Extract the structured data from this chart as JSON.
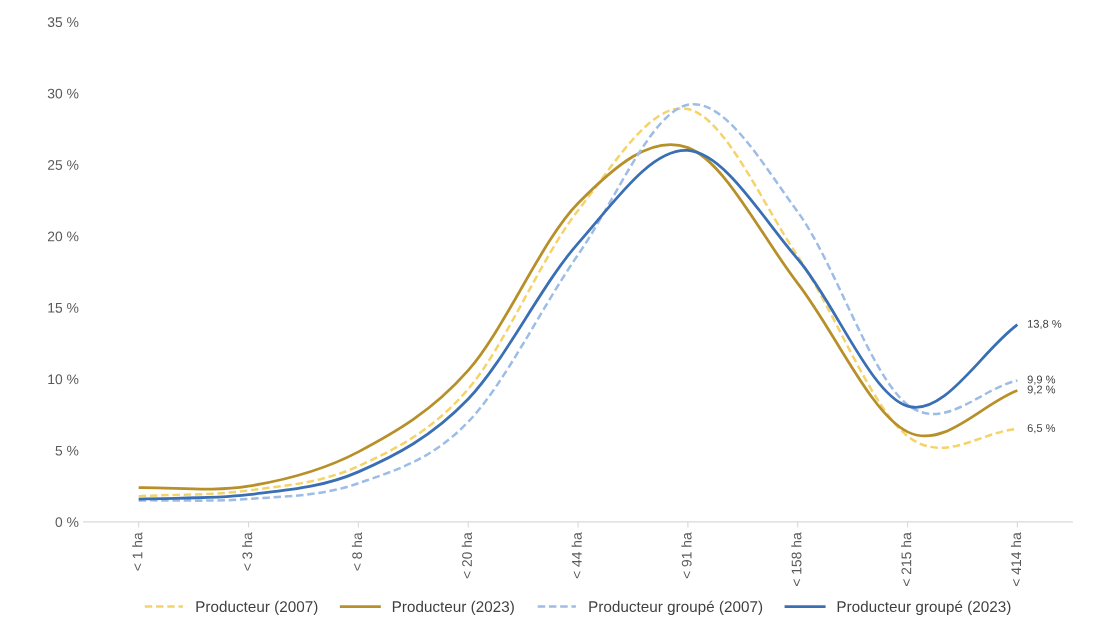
{
  "chart_data": {
    "type": "line",
    "categories": [
      "< 1 ha",
      "< 3 ha",
      "< 8 ha",
      "< 20 ha",
      "< 44 ha",
      "< 91 ha",
      "< 158 ha",
      "< 215 ha",
      "< 414 ha"
    ],
    "series": [
      {
        "name": "Producteur (2007)",
        "color": "#f5d36b",
        "line_style": "dashed",
        "values": [
          1.8,
          2.2,
          3.9,
          9.3,
          21.8,
          28.9,
          18.6,
          6.0,
          6.5
        ],
        "value_labels": [
          null,
          null,
          null,
          null,
          null,
          null,
          null,
          null,
          "6,5 %"
        ]
      },
      {
        "name": "Producteur (2023)",
        "color": "#b8902a",
        "line_style": "solid",
        "values": [
          2.4,
          2.5,
          4.9,
          10.6,
          22.3,
          26.2,
          16.7,
          6.3,
          9.2
        ],
        "value_labels": [
          null,
          null,
          null,
          null,
          null,
          null,
          null,
          null,
          "9,2 %"
        ]
      },
      {
        "name": "Producteur groupé (2007)",
        "color": "#9dbde6",
        "line_style": "dashed",
        "values": [
          1.5,
          1.6,
          2.7,
          7.0,
          18.7,
          29.2,
          21.7,
          8.2,
          9.9
        ],
        "value_labels": [
          null,
          null,
          null,
          null,
          null,
          null,
          null,
          null,
          "9,9 %"
        ]
      },
      {
        "name": "Producteur groupé (2023)",
        "color": "#3a6fb5",
        "line_style": "solid",
        "values": [
          1.6,
          1.9,
          3.5,
          8.6,
          19.5,
          26.0,
          18.4,
          8.1,
          13.8
        ],
        "value_labels": [
          null,
          null,
          null,
          null,
          null,
          null,
          null,
          null,
          "13,8 %"
        ]
      }
    ],
    "ylim": [
      0,
      35
    ],
    "yticks": [
      {
        "value": 0,
        "label": "0 %"
      },
      {
        "value": 5,
        "label": "5 %"
      },
      {
        "value": 10,
        "label": "10 %"
      },
      {
        "value": 15,
        "label": "15 %"
      },
      {
        "value": 20,
        "label": "20 %"
      },
      {
        "value": 25,
        "label": "25 %"
      },
      {
        "value": 30,
        "label": "30 %"
      },
      {
        "value": 35,
        "label": "35 %"
      }
    ],
    "grid": false,
    "legend": "bottom",
    "marker": "none"
  }
}
